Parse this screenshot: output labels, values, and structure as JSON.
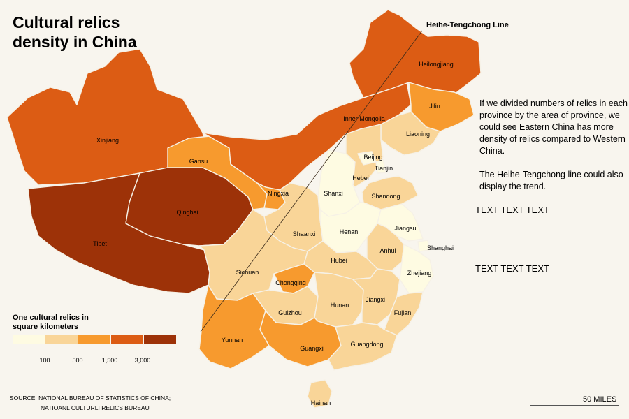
{
  "title": "Cultural relics\ndensity in China",
  "line_label": "Heihe-Tengchong Line",
  "note": [
    "If we divided numbers of relics in each province by the area of province, we could see Eastern China has more density of relics compared to Western China.",
    "The Heihe-Tengchong line could also display the trend."
  ],
  "placeholders": [
    "TEXT TEXT TEXT",
    "TEXT TEXT TEXT"
  ],
  "legend": {
    "title": "One cultural relics in\nsquare kilometers",
    "colors": [
      "#fefbe2",
      "#f9d598",
      "#f79a2e",
      "#dc5c14",
      "#9d3208"
    ],
    "ticks": [
      "100",
      "500",
      "1,500",
      "3,000"
    ]
  },
  "source": [
    "SOURCE: NATIONAL BUREAU OF STATISTICS OF CHINA;",
    "NATIOANL CULTURLI RELICS BUREAU"
  ],
  "scale": {
    "label": "50 MILES"
  },
  "provinces": [
    {
      "name": "Xinjiang",
      "class": 3
    },
    {
      "name": "Tibet",
      "class": 4
    },
    {
      "name": "Qinghai",
      "class": 4
    },
    {
      "name": "Gansu",
      "class": 2
    },
    {
      "name": "Inner Mongolia",
      "class": 3
    },
    {
      "name": "Heilongjiang",
      "class": 3
    },
    {
      "name": "Jilin",
      "class": 2
    },
    {
      "name": "Liaoning",
      "class": 1
    },
    {
      "name": "Ningxia",
      "class": 2
    },
    {
      "name": "Shaanxi",
      "class": 1
    },
    {
      "name": "Shanxi",
      "class": 0
    },
    {
      "name": "Hebei",
      "class": 1
    },
    {
      "name": "Beijing",
      "class": 0
    },
    {
      "name": "Tianjin",
      "class": 0
    },
    {
      "name": "Shandong",
      "class": 1
    },
    {
      "name": "Henan",
      "class": 0
    },
    {
      "name": "Jiangsu",
      "class": 0
    },
    {
      "name": "Shanghai",
      "class": 0
    },
    {
      "name": "Anhui",
      "class": 1
    },
    {
      "name": "Zhejiang",
      "class": 0
    },
    {
      "name": "Hubei",
      "class": 1
    },
    {
      "name": "Sichuan",
      "class": 1
    },
    {
      "name": "Chongqing",
      "class": 2
    },
    {
      "name": "Guizhou",
      "class": 1
    },
    {
      "name": "Hunan",
      "class": 1
    },
    {
      "name": "Jiangxi",
      "class": 1
    },
    {
      "name": "Fujian",
      "class": 1
    },
    {
      "name": "Yunnan",
      "class": 2
    },
    {
      "name": "Guangxi",
      "class": 2
    },
    {
      "name": "Guangdong",
      "class": 1
    },
    {
      "name": "Hainan",
      "class": 1
    }
  ]
}
